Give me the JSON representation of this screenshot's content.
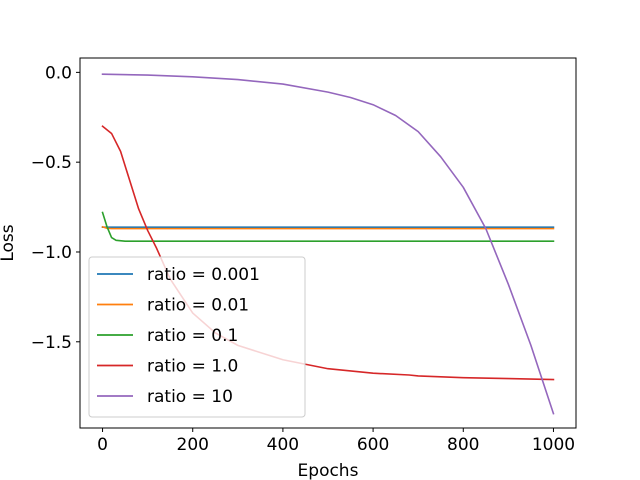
{
  "chart_data": {
    "type": "line",
    "title": "",
    "xlabel": "Epochs",
    "ylabel": "Loss",
    "xlim": [
      -50,
      1050
    ],
    "ylim": [
      -1.98,
      0.08
    ],
    "grid": false,
    "legend_position": "lower-left",
    "xticks": [
      0,
      200,
      400,
      600,
      800,
      1000
    ],
    "xtick_labels": [
      "0",
      "200",
      "400",
      "600",
      "800",
      "1000"
    ],
    "yticks": [
      0.0,
      -0.5,
      -1.0,
      -1.5
    ],
    "ytick_labels": [
      "0.0",
      "−0.5",
      "−1.0",
      "−1.5"
    ],
    "series": [
      {
        "name": "ratio = 0.001",
        "color": "#1f77b4",
        "x": [
          0,
          1000
        ],
        "y": [
          -0.862,
          -0.862
        ]
      },
      {
        "name": "ratio = 0.01",
        "color": "#ff7f0e",
        "x": [
          0,
          10,
          20,
          50,
          1000
        ],
        "y": [
          -0.86,
          -0.868,
          -0.87,
          -0.87,
          -0.87
        ]
      },
      {
        "name": "ratio = 0.1",
        "color": "#2ca02c",
        "x": [
          0,
          10,
          20,
          30,
          50,
          100,
          1000
        ],
        "y": [
          -0.78,
          -0.86,
          -0.92,
          -0.935,
          -0.94,
          -0.94,
          -0.94
        ]
      },
      {
        "name": "ratio = 1.0",
        "color": "#d62728",
        "x": [
          0,
          20,
          40,
          60,
          80,
          100,
          120,
          150,
          200,
          250,
          300,
          400,
          500,
          600,
          680,
          700,
          800,
          900,
          1000
        ],
        "y": [
          -0.3,
          -0.34,
          -0.44,
          -0.6,
          -0.76,
          -0.88,
          -0.98,
          -1.15,
          -1.34,
          -1.45,
          -1.52,
          -1.6,
          -1.65,
          -1.675,
          -1.685,
          -1.69,
          -1.7,
          -1.705,
          -1.71
        ]
      },
      {
        "name": "ratio = 10",
        "color": "#9467bd",
        "x": [
          0,
          100,
          200,
          300,
          400,
          500,
          550,
          600,
          650,
          700,
          750,
          800,
          850,
          900,
          950,
          1000
        ],
        "y": [
          -0.01,
          -0.015,
          -0.025,
          -0.04,
          -0.065,
          -0.11,
          -0.14,
          -0.18,
          -0.24,
          -0.33,
          -0.47,
          -0.64,
          -0.87,
          -1.18,
          -1.52,
          -1.9
        ]
      }
    ]
  }
}
